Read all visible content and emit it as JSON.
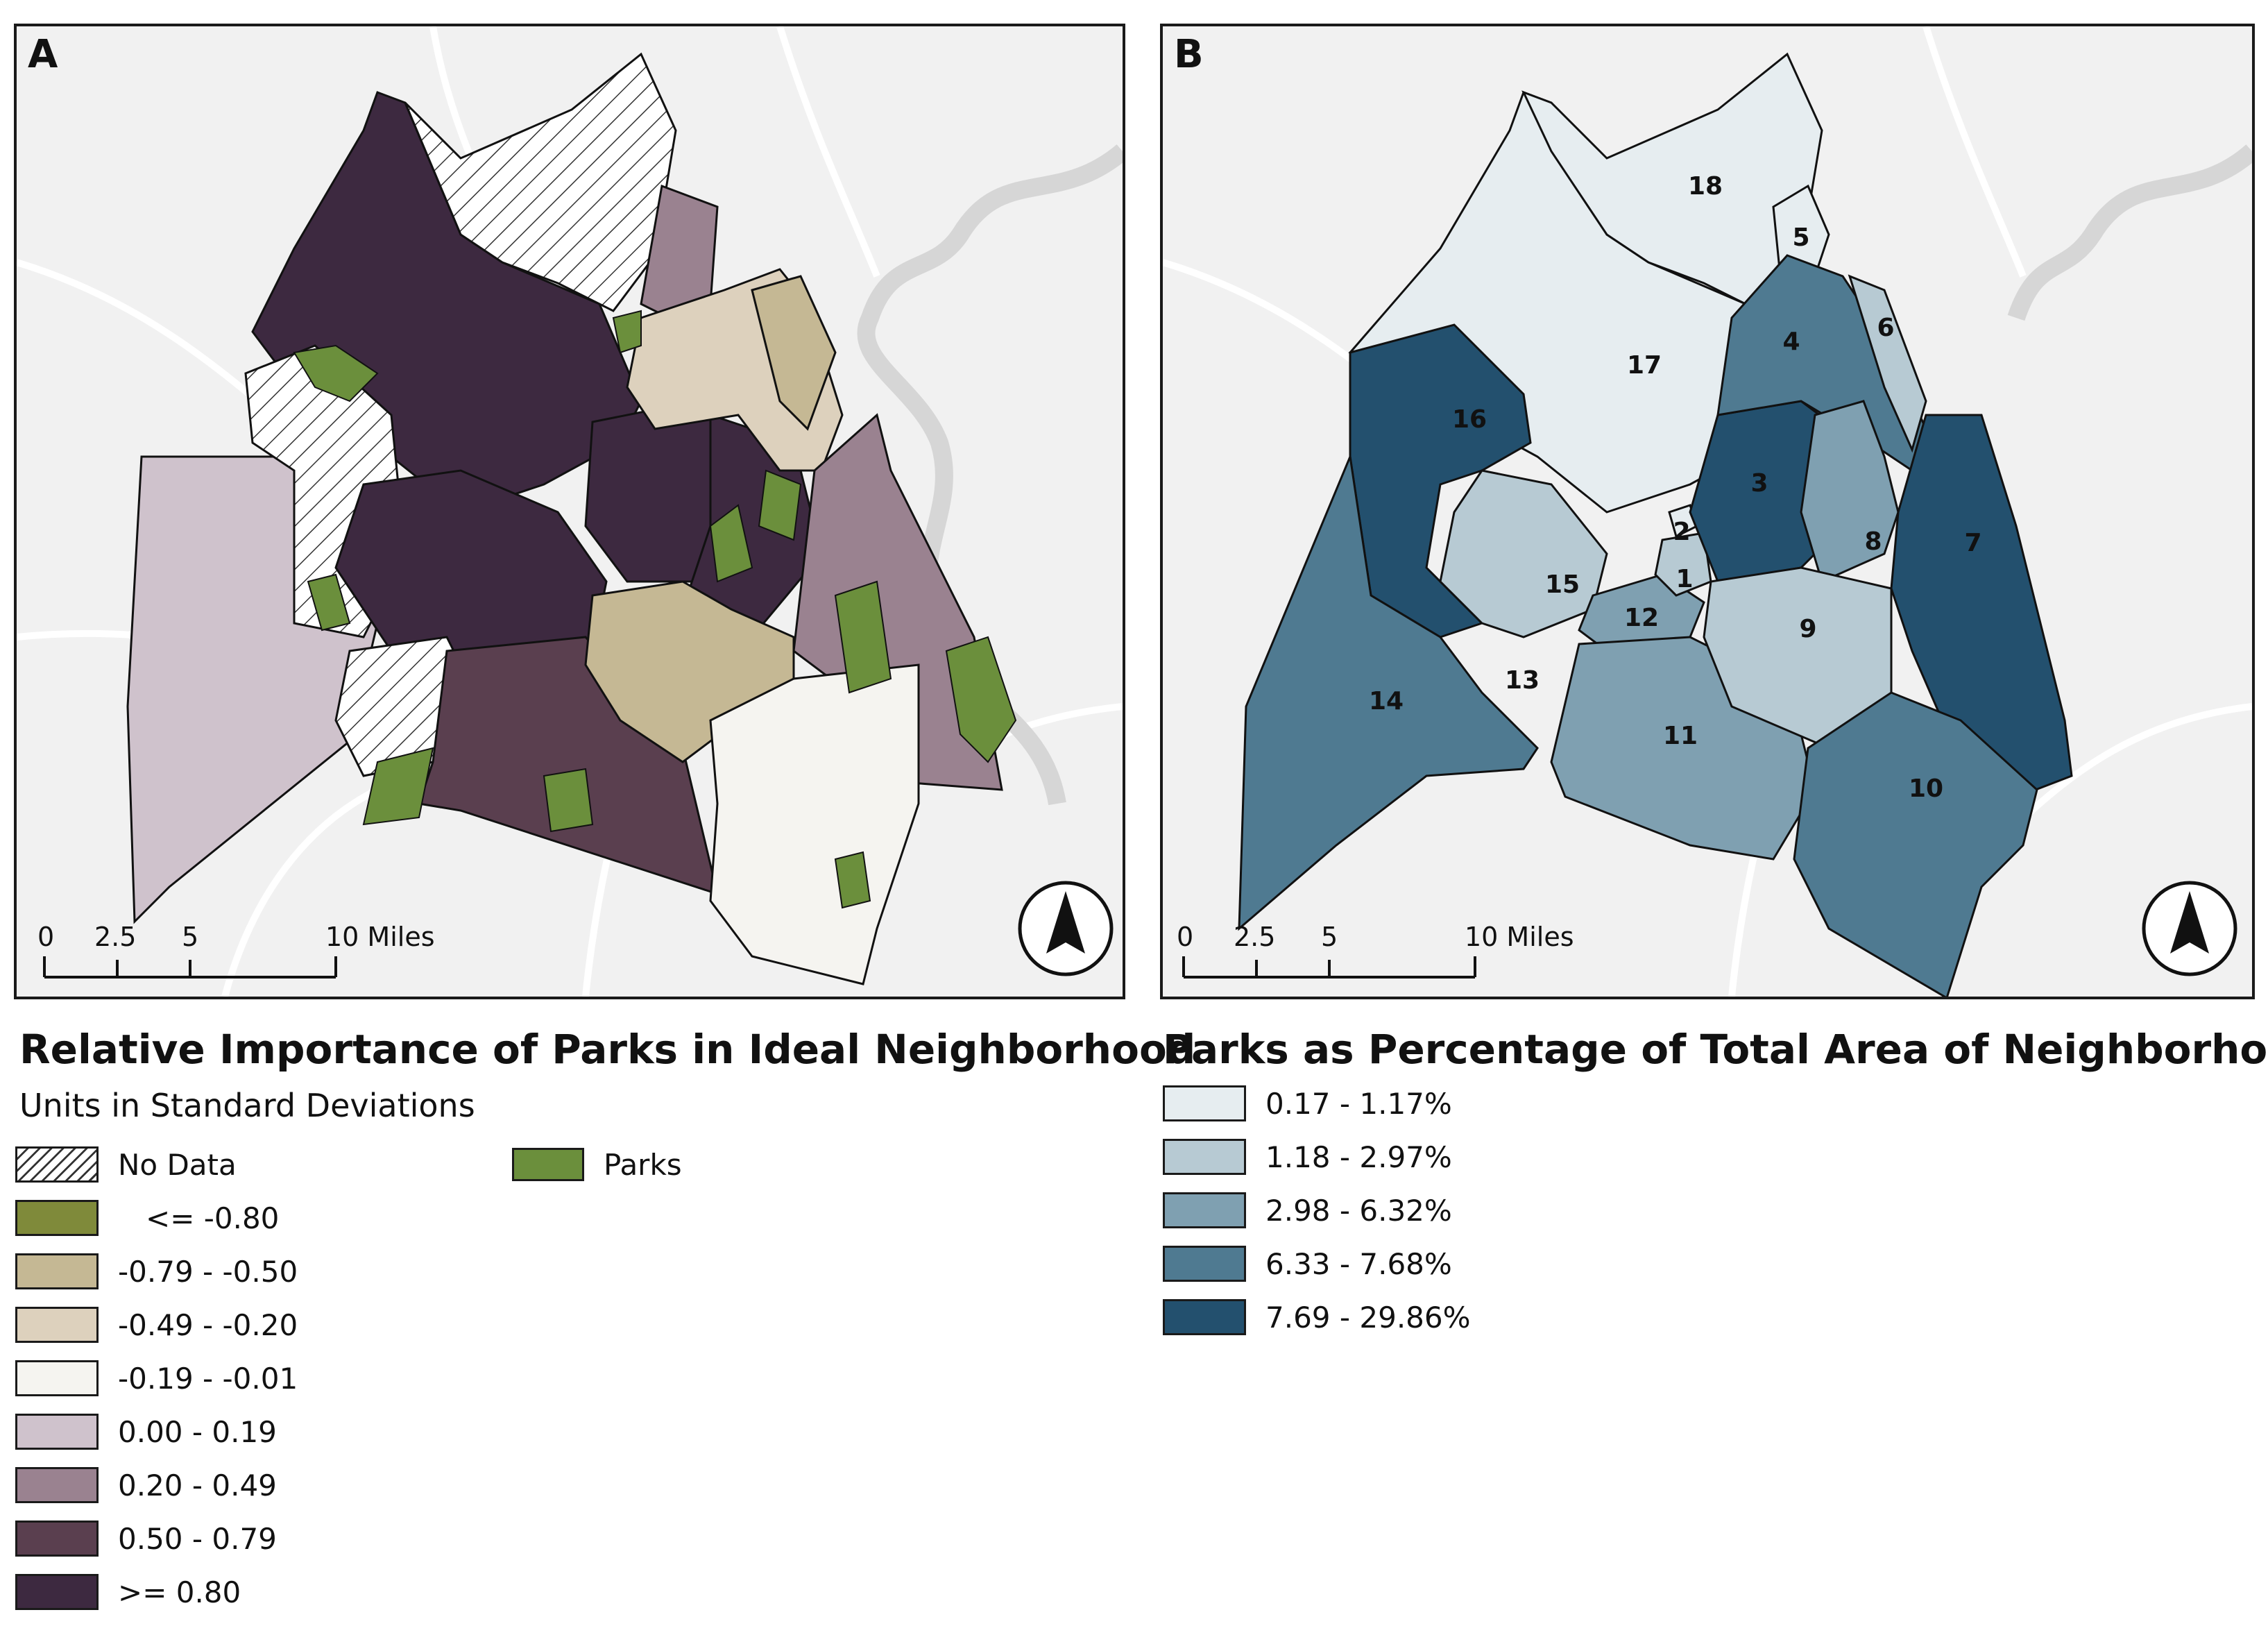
{
  "panel_a": {
    "letter": "A",
    "title": "Relative Importance of Parks in Ideal Neighborhood",
    "subtitle": "Units in Standard Deviations",
    "legend": [
      {
        "label": "No Data",
        "color": "hatch"
      },
      {
        "label": "<= -0.80",
        "color": "#7f8a3a"
      },
      {
        "label": "-0.79 - -0.50",
        "color": "#c5b894"
      },
      {
        "label": "-0.49 - -0.20",
        "color": "#ddd1bd"
      },
      {
        "label": "-0.19 - -0.01",
        "color": "#f5f4f0"
      },
      {
        "label": "0.00 - 0.19",
        "color": "#cfc2cc"
      },
      {
        "label": "0.20 - 0.49",
        "color": "#9a8290"
      },
      {
        "label": "0.50 - 0.79",
        "color": "#5a3f4f"
      },
      {
        "label": ">= 0.80",
        "color": "#3d2940"
      }
    ],
    "parks_legend": {
      "label": "Parks",
      "color": "#6b8f3c"
    },
    "scale": {
      "ticks": [
        "0",
        "2.5",
        "5",
        "10 Miles"
      ]
    }
  },
  "panel_b": {
    "letter": "B",
    "title": "Parks as Percentage of Total Area of Neighborhood",
    "legend": [
      {
        "label": "0.17 - 1.17%",
        "color": "#e6edf0"
      },
      {
        "label": "1.18 - 2.97%",
        "color": "#b7cad3"
      },
      {
        "label": "2.98 - 6.32%",
        "color": "#7fa0b1"
      },
      {
        "label": "6.33 - 7.68%",
        "color": "#4f7a91"
      },
      {
        "label": "7.69 - 29.86%",
        "color": "#23506e"
      }
    ],
    "neighborhood_labels": [
      "1",
      "2",
      "3",
      "4",
      "5",
      "6",
      "7",
      "8",
      "9",
      "10",
      "11",
      "12",
      "13",
      "14",
      "15",
      "16",
      "17",
      "18"
    ],
    "scale": {
      "ticks": [
        "0",
        "2.5",
        "5",
        "10 Miles"
      ]
    }
  }
}
